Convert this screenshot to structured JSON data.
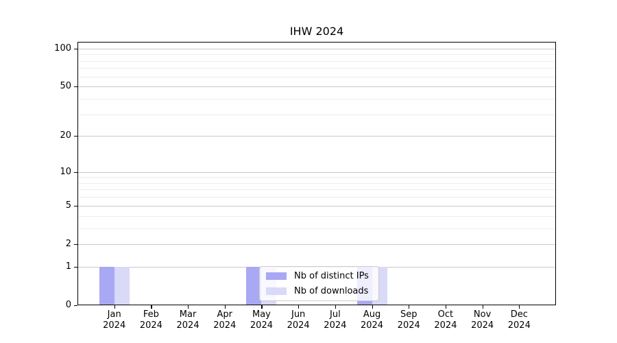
{
  "chart_data": {
    "type": "bar",
    "title": "IHW 2024",
    "categories": [
      "Jan 2024",
      "Feb 2024",
      "Mar 2024",
      "Apr 2024",
      "May 2024",
      "Jun 2024",
      "Jul 2024",
      "Aug 2024",
      "Sep 2024",
      "Oct 2024",
      "Nov 2024",
      "Dec 2024"
    ],
    "series": [
      {
        "name": "Nb of distinct IPs",
        "color": "#a8a8f4",
        "values": [
          1,
          0,
          0,
          0,
          1,
          0,
          0,
          1,
          0,
          0,
          0,
          0
        ]
      },
      {
        "name": "Nb of downloads",
        "color": "#d9d9f8",
        "values": [
          1,
          0,
          0,
          0,
          1,
          0,
          0,
          1,
          0,
          0,
          0,
          0
        ]
      }
    ],
    "xlabel": "",
    "ylabel": "",
    "yscale": "log1p",
    "ylim": [
      0,
      113
    ],
    "yticks": [
      0,
      1,
      2,
      5,
      10,
      20,
      50,
      100
    ],
    "yminorticks": [
      3,
      4,
      6,
      7,
      8,
      9,
      30,
      40,
      60,
      70,
      80,
      90
    ],
    "grid": "on",
    "legend_position": "lower center"
  }
}
